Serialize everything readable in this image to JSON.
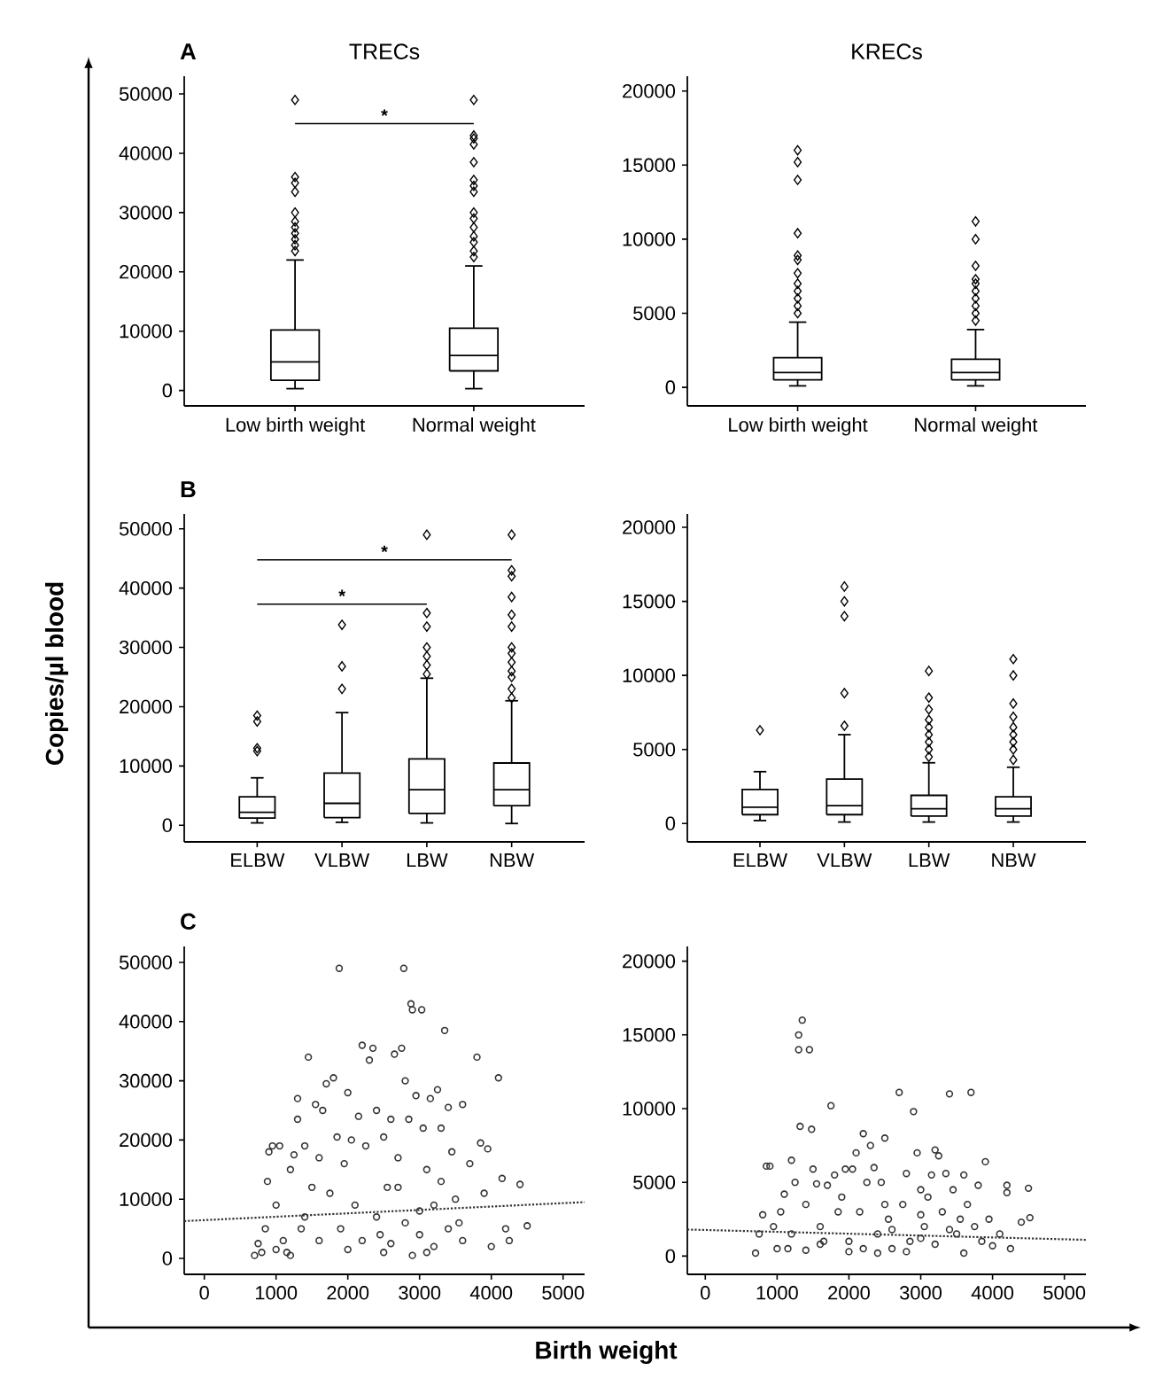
{
  "chart_data": [
    {
      "type": "box",
      "title": "TRECs",
      "annotations": [
        "A",
        "*"
      ],
      "categories": [
        "Low birth weight",
        "Normal weight"
      ],
      "color": "#000000",
      "marker": "diamond",
      "ylim": [
        -2600,
        53000
      ],
      "yticks": [
        0,
        10000,
        20000,
        30000,
        40000,
        50000
      ],
      "boxes": [
        {
          "low": 300,
          "q1": 1700,
          "median": 4800,
          "q3": 10200,
          "high": 22000,
          "outliers": [
            23500,
            24500,
            25500,
            26500,
            27500,
            28500,
            30000,
            33500,
            35000,
            36000,
            49000
          ]
        },
        {
          "low": 300,
          "q1": 3300,
          "median": 5900,
          "q3": 10500,
          "high": 21000,
          "outliers": [
            22500,
            23500,
            25000,
            26000,
            27500,
            29000,
            30000,
            33500,
            34500,
            35500,
            38500,
            41500,
            42500,
            43000,
            49000
          ]
        }
      ]
    },
    {
      "type": "box",
      "title": "KRECs",
      "categories": [
        "Low birth weight",
        "Normal weight"
      ],
      "color": "#000000",
      "marker": "diamond",
      "ylim": [
        -1250,
        21000
      ],
      "yticks": [
        0,
        5000,
        10000,
        15000,
        20000
      ],
      "boxes": [
        {
          "low": 100,
          "q1": 500,
          "median": 1000,
          "q3": 2000,
          "high": 4400,
          "outliers": [
            5000,
            5500,
            6000,
            6500,
            7000,
            7700,
            8600,
            8900,
            10400,
            14000,
            15200,
            16000
          ]
        },
        {
          "low": 100,
          "q1": 500,
          "median": 1000,
          "q3": 1900,
          "high": 3900,
          "outliers": [
            4500,
            5000,
            5500,
            6000,
            6500,
            7000,
            7300,
            8200,
            10000,
            11200
          ]
        }
      ]
    },
    {
      "type": "box",
      "ylabel": "Copies/µl blood",
      "annotations": [
        "B",
        "*",
        "*"
      ],
      "categories": [
        "ELBW",
        "VLBW",
        "LBW",
        "NBW"
      ],
      "color": "#000000",
      "marker": "diamond",
      "ylim": [
        -2800,
        52500
      ],
      "yticks": [
        0,
        10000,
        20000,
        30000,
        40000,
        50000
      ],
      "boxes": [
        {
          "low": 400,
          "q1": 1200,
          "median": 2200,
          "q3": 4800,
          "high": 8000,
          "outliers": [
            12500,
            13000,
            17500,
            18500
          ]
        },
        {
          "low": 500,
          "q1": 1300,
          "median": 3700,
          "q3": 8800,
          "high": 19000,
          "outliers": [
            23000,
            26800,
            33800
          ]
        },
        {
          "low": 400,
          "q1": 2000,
          "median": 6000,
          "q3": 11200,
          "high": 24800,
          "outliers": [
            25500,
            27000,
            28500,
            30000,
            33500,
            35800,
            49000
          ]
        },
        {
          "low": 300,
          "q1": 3300,
          "median": 6000,
          "q3": 10500,
          "high": 21000,
          "outliers": [
            21500,
            23000,
            25000,
            26000,
            27500,
            29000,
            30000,
            33500,
            35500,
            38500,
            42000,
            43000,
            49000
          ]
        }
      ]
    },
    {
      "type": "box",
      "categories": [
        "ELBW",
        "VLBW",
        "LBW",
        "NBW"
      ],
      "color": "#000000",
      "marker": "diamond",
      "ylim": [
        -1240,
        20900
      ],
      "yticks": [
        0,
        5000,
        10000,
        15000,
        20000
      ],
      "boxes": [
        {
          "low": 200,
          "q1": 600,
          "median": 1100,
          "q3": 2300,
          "high": 3500,
          "outliers": [
            6300
          ]
        },
        {
          "low": 100,
          "q1": 600,
          "median": 1200,
          "q3": 3000,
          "high": 6000,
          "outliers": [
            6600,
            8800,
            14000,
            15000,
            16000
          ]
        },
        {
          "low": 100,
          "q1": 500,
          "median": 1000,
          "q3": 1900,
          "high": 4100,
          "outliers": [
            4500,
            5000,
            5500,
            6000,
            6500,
            7000,
            7700,
            8500,
            10300
          ]
        },
        {
          "low": 100,
          "q1": 500,
          "median": 1000,
          "q3": 1800,
          "high": 3800,
          "outliers": [
            4300,
            5000,
            5500,
            6000,
            6500,
            7200,
            8100,
            10000,
            11100
          ]
        }
      ]
    },
    {
      "type": "scatter",
      "xlabel": "Birth weight",
      "annotations": [
        "C"
      ],
      "xlim": [
        -280,
        5300
      ],
      "xticks": [
        0,
        1000,
        2000,
        3000,
        4000,
        5000
      ],
      "ylim": [
        -2700,
        52700
      ],
      "yticks": [
        0,
        10000,
        20000,
        30000,
        40000,
        50000
      ],
      "series": [
        {
          "type": "scatter",
          "marker": "circle",
          "color": "#333333",
          "x": [
            700,
            750,
            800,
            850,
            900,
            880,
            950,
            1000,
            1050,
            1100,
            1150,
            1200,
            1250,
            1300,
            1300,
            1350,
            1400,
            1450,
            1500,
            1550,
            1600,
            1650,
            1700,
            1750,
            1800,
            1850,
            1880,
            1900,
            1950,
            2000,
            2050,
            2100,
            2150,
            2200,
            2250,
            2300,
            2350,
            2400,
            2450,
            2500,
            2550,
            2600,
            2650,
            2700,
            2750,
            2780,
            2800,
            2850,
            2880,
            2900,
            2950,
            3000,
            3030,
            3050,
            3100,
            3150,
            3200,
            3250,
            3300,
            3350,
            3400,
            3450,
            3500,
            3550,
            3600,
            3700,
            3800,
            3850,
            3900,
            3950,
            4000,
            4100,
            4150,
            4200,
            4250,
            4400,
            4500,
            2000,
            2200,
            2400,
            2600,
            2800,
            3000,
            3200,
            3400,
            1600,
            1400,
            2500,
            3100,
            3600,
            2700,
            2900,
            3300,
            1000,
            1200
          ],
          "values": [
            500,
            2500,
            1000,
            5000,
            18000,
            13000,
            19000,
            9000,
            19000,
            3000,
            1000,
            15000,
            17500,
            27000,
            23500,
            5000,
            19000,
            34000,
            12000,
            26000,
            17000,
            25000,
            29500,
            11000,
            30500,
            20500,
            49000,
            5000,
            16000,
            28000,
            20000,
            9000,
            24000,
            36000,
            19000,
            33500,
            35500,
            25000,
            4000,
            20500,
            12000,
            23500,
            34500,
            17000,
            35500,
            49000,
            30000,
            23500,
            43000,
            42000,
            27500,
            8000,
            42000,
            22000,
            15000,
            27000,
            2000,
            28500,
            22000,
            38500,
            25500,
            18000,
            10000,
            6000,
            26000,
            16000,
            34000,
            19500,
            11000,
            18500,
            2000,
            30500,
            13500,
            5000,
            3000,
            12500,
            5500,
            1500,
            3000,
            7000,
            2500,
            6000,
            4000,
            9000,
            5000,
            3000,
            7000,
            1000,
            1000,
            3000,
            12000,
            500,
            13000,
            1500,
            500
          ]
        },
        {
          "type": "line",
          "marker": "none",
          "color": "#333333",
          "line_style": "dotted",
          "x": [
            -280,
            5300
          ],
          "values": [
            6300,
            9500
          ]
        }
      ]
    },
    {
      "type": "scatter",
      "xlim": [
        -250,
        5300
      ],
      "xticks": [
        0,
        1000,
        2000,
        3000,
        4000,
        5000
      ],
      "ylim": [
        -1240,
        21000
      ],
      "yticks": [
        0,
        5000,
        10000,
        15000,
        20000
      ],
      "series": [
        {
          "type": "scatter",
          "marker": "circle",
          "color": "#333333",
          "x": [
            700,
            750,
            800,
            850,
            900,
            950,
            1000,
            1050,
            1100,
            1150,
            1200,
            1250,
            1300,
            1300,
            1320,
            1350,
            1400,
            1450,
            1480,
            1500,
            1550,
            1600,
            1650,
            1700,
            1750,
            1800,
            1850,
            1900,
            1950,
            2000,
            2050,
            2100,
            2150,
            2200,
            2250,
            2300,
            2350,
            2400,
            2450,
            2500,
            2550,
            2600,
            2700,
            2750,
            2800,
            2850,
            2900,
            2950,
            3000,
            3050,
            3100,
            3150,
            3200,
            3250,
            3300,
            3350,
            3400,
            3450,
            3500,
            3550,
            3600,
            3650,
            3700,
            3750,
            3800,
            3850,
            3900,
            3950,
            4000,
            4100,
            4200,
            4200,
            4250,
            4400,
            4500,
            4520,
            2000,
            2200,
            2400,
            2600,
            2800,
            3000,
            3200,
            3400,
            3600,
            1600,
            1400,
            1200,
            3000,
            2500
          ],
          "values": [
            200,
            1500,
            2800,
            6100,
            6100,
            2000,
            500,
            3000,
            4200,
            500,
            6500,
            5000,
            15000,
            14000,
            8800,
            16000,
            3500,
            14000,
            8600,
            5900,
            4900,
            2000,
            1000,
            4800,
            10200,
            5500,
            3000,
            4000,
            5900,
            300,
            5900,
            7000,
            3000,
            8300,
            5000,
            7500,
            6000,
            1500,
            5000,
            8000,
            2500,
            500,
            11100,
            3500,
            5600,
            1000,
            9800,
            7000,
            4500,
            2000,
            4000,
            5500,
            7200,
            6800,
            3000,
            5600,
            11000,
            4500,
            1500,
            2500,
            5500,
            3500,
            11100,
            2000,
            4800,
            1000,
            6400,
            2500,
            700,
            1500,
            4800,
            4300,
            500,
            2300,
            4600,
            2600,
            1000,
            500,
            200,
            1800,
            300,
            1200,
            800,
            1800,
            200,
            800,
            400,
            1500,
            2800,
            3500
          ]
        },
        {
          "type": "line",
          "marker": "none",
          "color": "#333333",
          "line_style": "dotted",
          "x": [
            -250,
            5300
          ],
          "values": [
            1800,
            1100
          ]
        }
      ]
    }
  ]
}
